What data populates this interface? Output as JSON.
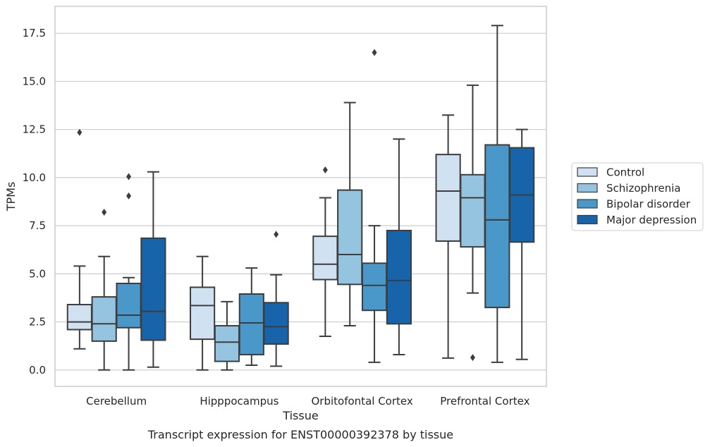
{
  "chart_data": {
    "type": "box",
    "title": "Transcript expression for ENST00000392378 by tissue",
    "xlabel": "Tissue",
    "ylabel": "TPMs",
    "ylim": [
      -0.85,
      18.9
    ],
    "yticks": [
      "0.0",
      "2.5",
      "5.0",
      "7.5",
      "10.0",
      "12.5",
      "15.0",
      "17.5"
    ],
    "ytick_values": [
      0,
      2.5,
      5,
      7.5,
      10,
      12.5,
      15,
      17.5
    ],
    "grid": "horizontal",
    "legend_position": "right-outside",
    "categories": [
      "Cerebellum",
      "Hipppocampus",
      "Orbitofontal Cortex",
      "Prefrontal Cortex"
    ],
    "series": [
      {
        "name": "Control",
        "color": "#d0e1f2",
        "boxes": [
          {
            "whislo": 1.1,
            "q1": 2.1,
            "med": 2.5,
            "q3": 3.4,
            "whishi": 5.4,
            "fliers": [
              12.35
            ]
          },
          {
            "whislo": 0.0,
            "q1": 1.6,
            "med": 3.35,
            "q3": 4.3,
            "whishi": 5.9,
            "fliers": []
          },
          {
            "whislo": 1.75,
            "q1": 4.7,
            "med": 5.5,
            "q3": 6.95,
            "whishi": 8.95,
            "fliers": [
              10.4
            ]
          },
          {
            "whislo": 0.62,
            "q1": 6.7,
            "med": 9.3,
            "q3": 11.2,
            "whishi": 13.25,
            "fliers": []
          }
        ]
      },
      {
        "name": "Schizophrenia",
        "color": "#94c4df",
        "boxes": [
          {
            "whislo": 0.0,
            "q1": 1.5,
            "med": 2.4,
            "q3": 3.8,
            "whishi": 5.9,
            "fliers": [
              8.2
            ]
          },
          {
            "whislo": 0.0,
            "q1": 0.45,
            "med": 1.45,
            "q3": 2.3,
            "whishi": 3.55,
            "fliers": []
          },
          {
            "whislo": 2.3,
            "q1": 4.45,
            "med": 6.0,
            "q3": 9.35,
            "whishi": 13.9,
            "fliers": []
          },
          {
            "whislo": 4.0,
            "q1": 6.4,
            "med": 8.95,
            "q3": 10.15,
            "whishi": 14.8,
            "fliers": [
              0.65
            ]
          }
        ]
      },
      {
        "name": "Bipolar disorder",
        "color": "#4a98c9",
        "boxes": [
          {
            "whislo": 0.0,
            "q1": 2.2,
            "med": 2.85,
            "q3": 4.5,
            "whishi": 4.8,
            "fliers": [
              9.05,
              10.05
            ]
          },
          {
            "whislo": 0.25,
            "q1": 0.8,
            "med": 2.45,
            "q3": 3.95,
            "whishi": 5.3,
            "fliers": []
          },
          {
            "whislo": 0.4,
            "q1": 3.1,
            "med": 4.4,
            "q3": 5.55,
            "whishi": 7.5,
            "fliers": [
              16.5
            ]
          },
          {
            "whislo": 0.4,
            "q1": 3.25,
            "med": 7.8,
            "q3": 11.7,
            "whishi": 17.9,
            "fliers": []
          }
        ]
      },
      {
        "name": "Major depression",
        "color": "#1764ab",
        "boxes": [
          {
            "whislo": 0.15,
            "q1": 1.55,
            "med": 3.05,
            "q3": 6.85,
            "whishi": 10.3,
            "fliers": []
          },
          {
            "whislo": 0.2,
            "q1": 1.35,
            "med": 2.25,
            "q3": 3.5,
            "whishi": 4.95,
            "fliers": [
              7.05
            ]
          },
          {
            "whislo": 0.8,
            "q1": 2.4,
            "med": 4.65,
            "q3": 7.25,
            "whishi": 12.0,
            "fliers": []
          },
          {
            "whislo": 0.55,
            "q1": 6.65,
            "med": 9.1,
            "q3": 11.55,
            "whishi": 12.5,
            "fliers": []
          }
        ]
      }
    ]
  }
}
